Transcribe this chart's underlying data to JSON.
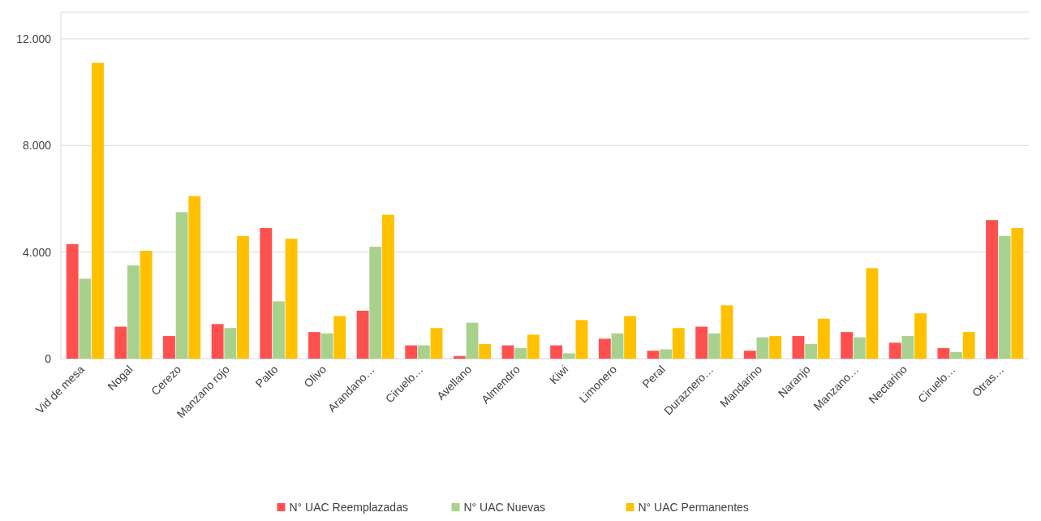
{
  "chart_data": {
    "type": "bar",
    "categories": [
      "Vid de mesa",
      "Nogal",
      "Cerezo",
      "Manzano rojo",
      "Palto",
      "Olivo",
      "Arandano…",
      "Ciruelo…",
      "Avellano",
      "Almendro",
      "Kiwi",
      "Limonero",
      "Peral",
      "Duraznero…",
      "Mandarino",
      "Naranjo",
      "Manzano…",
      "Nectarino",
      "Ciruelo…",
      "Otras…"
    ],
    "series": [
      {
        "name": "N° UAC Reemplazadas",
        "color": "#ff5050",
        "values": [
          4300,
          1200,
          850,
          1300,
          4900,
          1000,
          1800,
          500,
          100,
          500,
          500,
          750,
          300,
          1200,
          300,
          850,
          1000,
          600,
          400,
          5200
        ]
      },
      {
        "name": "N° UAC Nuevas",
        "color": "#a9d18e",
        "values": [
          3000,
          3500,
          5500,
          1150,
          2150,
          950,
          4200,
          500,
          1350,
          400,
          200,
          950,
          350,
          950,
          800,
          550,
          800,
          850,
          250,
          4600
        ]
      },
      {
        "name": "N° UAC Permanentes",
        "color": "#ffc000",
        "values": [
          11100,
          4050,
          6100,
          4600,
          4500,
          1600,
          5400,
          1150,
          550,
          900,
          1450,
          1600,
          1150,
          2000,
          850,
          1500,
          3400,
          1700,
          1000,
          4900
        ]
      }
    ],
    "ylim": [
      0,
      13000
    ],
    "yticks": [
      {
        "value": 0,
        "label": "0"
      },
      {
        "value": 4000,
        "label": "4.000"
      },
      {
        "value": 8000,
        "label": "8.000"
      },
      {
        "value": 12000,
        "label": "12.000"
      }
    ],
    "grid": "y",
    "legend": "bottom"
  }
}
